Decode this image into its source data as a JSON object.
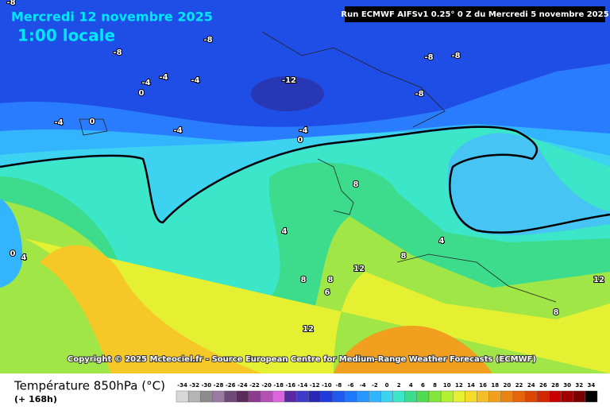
{
  "header": {
    "date": "Mercredi 12 novembre 2025",
    "time": "1:00 locale",
    "run": "Run ECMWF AIFSv1 0.25° 0 Z du Mercredi 5 novembre 2025"
  },
  "map": {
    "contour_labels": [
      "-8",
      "-8",
      "-8",
      "-8",
      "-8",
      "-4",
      "-4",
      "-4",
      "0",
      "-12",
      "-8",
      "-4",
      "0",
      "-4",
      "-4",
      "0",
      "8",
      "4",
      "0",
      "4",
      "4",
      "8",
      "12",
      "8",
      "8",
      "6",
      "12",
      "8",
      "12"
    ]
  },
  "copyright": "Copyright © 2025 Mcteociel.fr - Source European Centre for Medium-Range Weather Forecasts (ECMWF)",
  "legend": {
    "title": "Température 850hPa (°C)",
    "lead": "(+ 168h)",
    "items": [
      {
        "label": "-34",
        "color": "#d8d8d8"
      },
      {
        "label": "-32",
        "color": "#b4b4b4"
      },
      {
        "label": "-30",
        "color": "#8c8c8c"
      },
      {
        "label": "-28",
        "color": "#9a7aa0"
      },
      {
        "label": "-26",
        "color": "#6e4a7a"
      },
      {
        "label": "-24",
        "color": "#5a2a5a"
      },
      {
        "label": "-22",
        "color": "#8c3c8c"
      },
      {
        "label": "-20",
        "color": "#b450b4"
      },
      {
        "label": "-18",
        "color": "#dc64dc"
      },
      {
        "label": "-16",
        "color": "#5a28a0"
      },
      {
        "label": "-14",
        "color": "#3c3cc8"
      },
      {
        "label": "-12",
        "color": "#2828b4"
      },
      {
        "label": "-10",
        "color": "#1e3cdc"
      },
      {
        "label": "-8",
        "color": "#1e5af0"
      },
      {
        "label": "-6",
        "color": "#1e78ff"
      },
      {
        "label": "-4",
        "color": "#2896ff"
      },
      {
        "label": "-2",
        "color": "#32b4ff"
      },
      {
        "label": "0",
        "color": "#3cd2f0"
      },
      {
        "label": "2",
        "color": "#3ce6c8"
      },
      {
        "label": "4",
        "color": "#3cdc8c"
      },
      {
        "label": "6",
        "color": "#50dc50"
      },
      {
        "label": "8",
        "color": "#82e63c"
      },
      {
        "label": "10",
        "color": "#b4f032"
      },
      {
        "label": "12",
        "color": "#e6f032"
      },
      {
        "label": "14",
        "color": "#f5dc28"
      },
      {
        "label": "16",
        "color": "#f5be28"
      },
      {
        "label": "18",
        "color": "#f0a01e"
      },
      {
        "label": "20",
        "color": "#eb8214"
      },
      {
        "label": "22",
        "color": "#e6640a"
      },
      {
        "label": "24",
        "color": "#dc4600"
      },
      {
        "label": "26",
        "color": "#d22800"
      },
      {
        "label": "28",
        "color": "#c80000"
      },
      {
        "label": "30",
        "color": "#a00000"
      },
      {
        "label": "32",
        "color": "#780000"
      },
      {
        "label": "34",
        "color": "#000000"
      }
    ]
  }
}
